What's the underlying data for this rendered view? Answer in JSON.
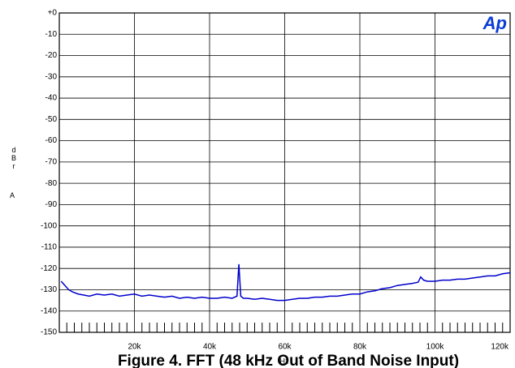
{
  "chart_data": {
    "type": "line",
    "title": "Figure 4. FFT (48 kHz Out of Band Noise Input)",
    "logo": "Ap",
    "xlabel": "Hz",
    "ylabel": "dBr",
    "ylabel_unit": "A",
    "xlim": [
      0,
      120000
    ],
    "ylim": [
      -150,
      0
    ],
    "xticks": [
      {
        "value": 20000,
        "label": "20k"
      },
      {
        "value": 40000,
        "label": "40k"
      },
      {
        "value": 60000,
        "label": "60k"
      },
      {
        "value": 80000,
        "label": "80k"
      },
      {
        "value": 100000,
        "label": "100k"
      },
      {
        "value": 120000,
        "label": "120k"
      }
    ],
    "xminorticks": [
      2000,
      4000,
      6000,
      8000,
      10000,
      12000,
      14000,
      16000,
      18000,
      22000,
      24000,
      26000,
      28000,
      30000,
      32000,
      34000,
      36000,
      38000,
      42000,
      44000,
      46000,
      48000,
      50000,
      52000,
      54000,
      56000,
      58000,
      62000,
      64000,
      66000,
      68000,
      70000,
      72000,
      74000,
      76000,
      78000,
      82000,
      84000,
      86000,
      88000,
      90000,
      92000,
      94000,
      96000,
      98000,
      102000,
      104000,
      106000,
      108000,
      110000,
      112000,
      114000,
      116000,
      118000
    ],
    "yticks": [
      {
        "value": 0,
        "label": "+0"
      },
      -10,
      -20,
      -30,
      -40,
      -50,
      -60,
      -70,
      -80,
      -90,
      -100,
      -110,
      -120,
      -130,
      -140,
      -150
    ],
    "grid": true,
    "series": [
      {
        "name": "FFT",
        "color": "#0000cc",
        "x": [
          500,
          1500,
          2500,
          3500,
          5000,
          6500,
          8000,
          10000,
          12000,
          14000,
          16000,
          18000,
          20000,
          22000,
          24000,
          26000,
          28000,
          30000,
          32000,
          34000,
          36000,
          38000,
          40000,
          42000,
          44000,
          46000,
          47300,
          47800,
          48300,
          49000,
          50000,
          52000,
          54000,
          56000,
          58000,
          60000,
          62000,
          64000,
          66000,
          68000,
          70000,
          72000,
          74000,
          76000,
          78000,
          80000,
          82000,
          84000,
          86000,
          88000,
          90000,
          92000,
          94000,
          95500,
          96200,
          97000,
          98000,
          100000,
          102000,
          104000,
          106000,
          108000,
          110000,
          112000,
          114000,
          116000,
          118000,
          120000
        ],
        "values": [
          -126,
          -128,
          -130,
          -131,
          -132,
          -132.5,
          -133,
          -132,
          -132.5,
          -132,
          -133,
          -132.5,
          -132,
          -133,
          -132.5,
          -133,
          -133.5,
          -133,
          -134,
          -133.5,
          -134,
          -133.5,
          -134,
          -134,
          -133.5,
          -134,
          -133,
          -118,
          -133,
          -134,
          -134,
          -134.5,
          -134,
          -134.5,
          -135,
          -135,
          -134.5,
          -134,
          -134,
          -133.5,
          -133.5,
          -133,
          -133,
          -132.5,
          -132,
          -132,
          -131,
          -130.5,
          -129.5,
          -129,
          -128,
          -127.5,
          -127,
          -126.5,
          -124,
          -125.5,
          -126,
          -126,
          -125.5,
          -125.5,
          -125,
          -125,
          -124.5,
          -124,
          -123.5,
          -123.5,
          -122.5,
          -122
        ]
      }
    ]
  }
}
